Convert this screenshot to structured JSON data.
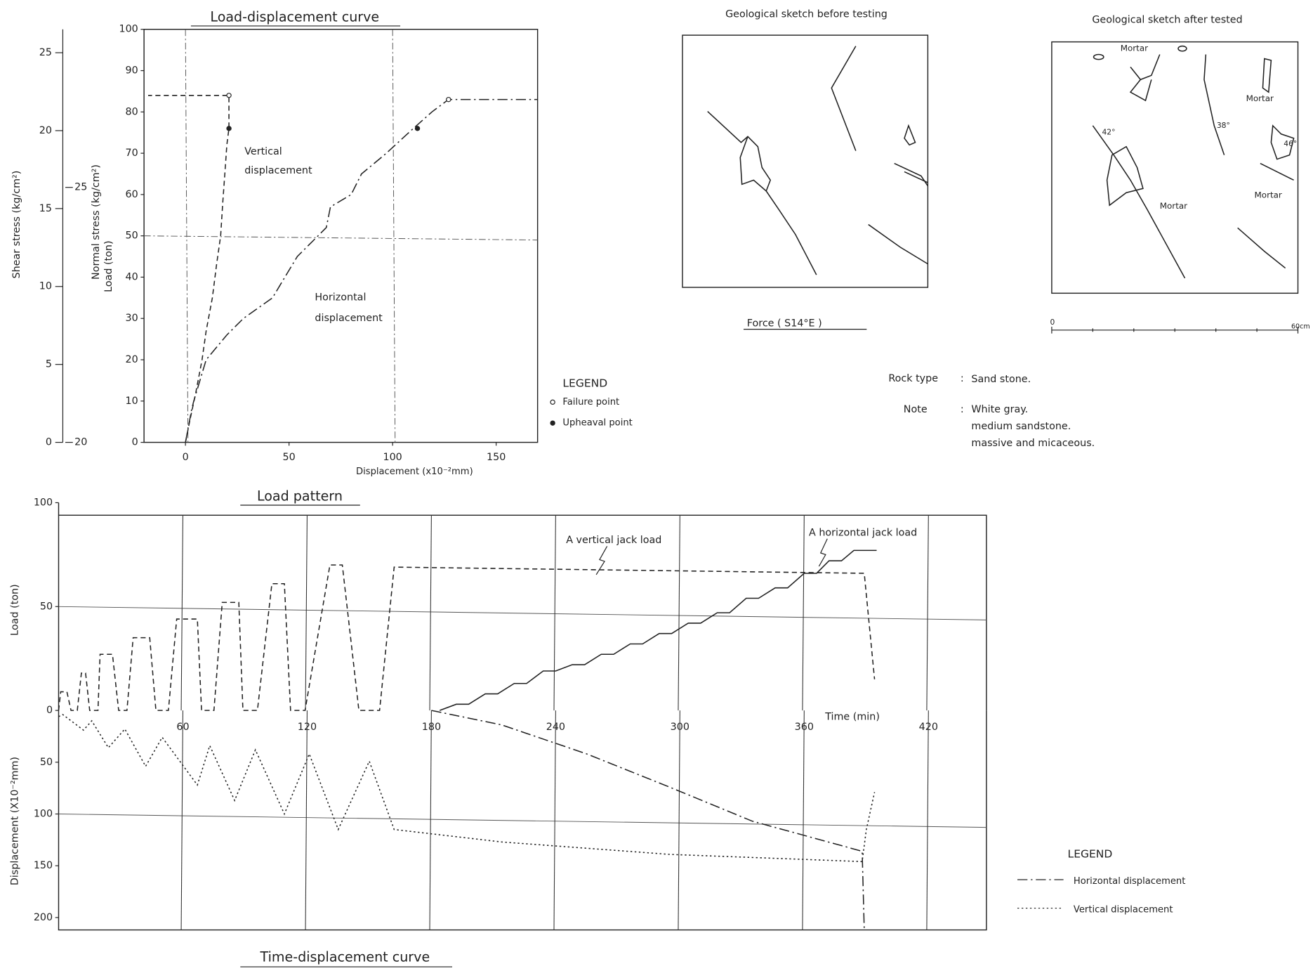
{
  "chart_data": [
    {
      "type": "line",
      "title": "Load-displacement curve",
      "xlabel": "Displacement (x10⁻²mm)",
      "ylabel": "Load (ton)",
      "y2label": "Shear stress (kg/cm²)",
      "y3label": "Normal stress (kg/cm²)",
      "xlim": [
        -20,
        170
      ],
      "xticks": [
        0,
        50,
        100,
        150
      ],
      "xgrid": [
        0,
        100
      ],
      "ylim": [
        0,
        100
      ],
      "yticks": [
        0,
        10,
        20,
        30,
        40,
        50,
        60,
        70,
        80,
        90,
        100
      ],
      "ygrid": [
        50
      ],
      "y2lim": [
        0,
        26.5
      ],
      "y2ticks": [
        0,
        5,
        10,
        15,
        20,
        25
      ],
      "y3lim": [
        20,
        28.1
      ],
      "y3ticks": [
        20,
        25
      ],
      "series": [
        {
          "name": "Vertical displacement",
          "color": "#222",
          "style": "dashed",
          "x": [
            0,
            2,
            5,
            8,
            10,
            13,
            15,
            17,
            18,
            19,
            20,
            21,
            21,
            -18
          ],
          "values": [
            0,
            5,
            12,
            20,
            27,
            35,
            43,
            50,
            58,
            65,
            72,
            76,
            84,
            84
          ]
        },
        {
          "name": "Horizontal displacement",
          "color": "#222",
          "style": "dashdot",
          "x": [
            0,
            3,
            4,
            10,
            20,
            28,
            42,
            48,
            54,
            64,
            68,
            70,
            80,
            85,
            97,
            110,
            119,
            127,
            170
          ],
          "values": [
            0,
            8,
            10,
            20,
            26,
            30,
            35,
            40,
            45,
            50,
            52,
            57,
            60,
            65,
            70,
            76,
            80,
            83,
            83
          ]
        }
      ],
      "legend_title": "LEGEND",
      "markers": [
        {
          "name": "Failure point",
          "fill": "none",
          "x": [
            21,
            127
          ],
          "values": [
            84,
            83
          ]
        },
        {
          "name": "Upheaval point",
          "fill": "#222",
          "x": [
            21,
            112
          ],
          "values": [
            76,
            76
          ]
        }
      ]
    },
    {
      "type": "line",
      "title": "Load pattern",
      "xlabel": "Time (min)",
      "ylabel": "Load (ton)",
      "xlim": [
        0,
        448
      ],
      "xticks": [
        60,
        120,
        180,
        240,
        300,
        360,
        420
      ],
      "grid": "x",
      "ylim": [
        0,
        100
      ],
      "yticks": [
        0,
        50,
        100
      ],
      "ygrid": [
        50
      ],
      "series": [
        {
          "name": "A vertical jack load",
          "color": "#222",
          "style": "dashed",
          "x": [
            0,
            1,
            4,
            6,
            9,
            11,
            13,
            15,
            19,
            20,
            26,
            29,
            33,
            36,
            44,
            47,
            53,
            57,
            67,
            69,
            75,
            79,
            87,
            89,
            96,
            103,
            109,
            112,
            119,
            131,
            137,
            145,
            155,
            162,
            389,
            394
          ],
          "values": [
            0,
            9,
            9,
            0,
            0,
            18,
            18,
            0,
            0,
            27,
            27,
            0,
            0,
            35,
            35,
            0,
            0,
            44,
            44,
            0,
            0,
            52,
            52,
            0,
            0,
            61,
            61,
            0,
            0,
            70,
            70,
            0,
            0,
            69,
            66,
            15
          ]
        },
        {
          "name": "A horizontal jack load",
          "color": "#222",
          "style": "solid",
          "x": [
            184,
            192,
            198,
            206,
            212,
            220,
            226,
            234,
            240,
            248,
            254,
            262,
            268,
            276,
            282,
            290,
            296,
            304,
            310,
            318,
            324,
            332,
            338,
            346,
            352,
            360,
            366,
            372,
            378,
            384,
            395
          ],
          "values": [
            0,
            3,
            3,
            8,
            8,
            13,
            13,
            19,
            19,
            22,
            22,
            27,
            27,
            32,
            32,
            37,
            37,
            42,
            42,
            47,
            47,
            54,
            54,
            59,
            59,
            66,
            66,
            72,
            72,
            77,
            77
          ]
        }
      ]
    },
    {
      "type": "line",
      "title": "Time-displacement curve",
      "ylabel": "Displacement (X10⁻²mm)",
      "xlim": [
        0,
        448
      ],
      "ylim": [
        212,
        0
      ],
      "yticks": [
        50,
        100,
        150,
        200
      ],
      "ygrid": [
        100
      ],
      "legend_title": "LEGEND",
      "series": [
        {
          "name": "Horizontal displacement",
          "color": "#222",
          "style": "dashdot",
          "x": [
            180,
            214,
            255,
            295,
            335,
            388,
            389
          ],
          "values": [
            0,
            14,
            42,
            74,
            107,
            136,
            212
          ]
        },
        {
          "name": "Vertical displacement",
          "color": "#222",
          "style": "dotted",
          "x": [
            0,
            2,
            12,
            16,
            24,
            32,
            42,
            50,
            67,
            73,
            85,
            95,
            109,
            121,
            135,
            150,
            162,
            214,
            295,
            388,
            390,
            394
          ],
          "values": [
            6,
            4,
            19,
            10,
            36,
            18,
            54,
            26,
            72,
            34,
            87,
            38,
            100,
            42,
            115,
            49,
            115,
            127,
            139,
            146,
            115,
            79
          ]
        }
      ]
    }
  ],
  "sketches": {
    "before": {
      "title": "Geological sketch before testing",
      "force": "Force ( S14°E )"
    },
    "after": {
      "title": "Geological sketch after tested",
      "mortar": "Mortar",
      "angles": [
        "42°",
        "38°",
        "46°"
      ],
      "scale": [
        "0",
        "60cm"
      ]
    }
  },
  "rock": {
    "type_label": "Rock type",
    "sep": ":",
    "type": "Sand stone.",
    "note_label": "Note",
    "note": [
      "White gray.",
      "medium sandstone.",
      "massive and micaceous."
    ]
  }
}
